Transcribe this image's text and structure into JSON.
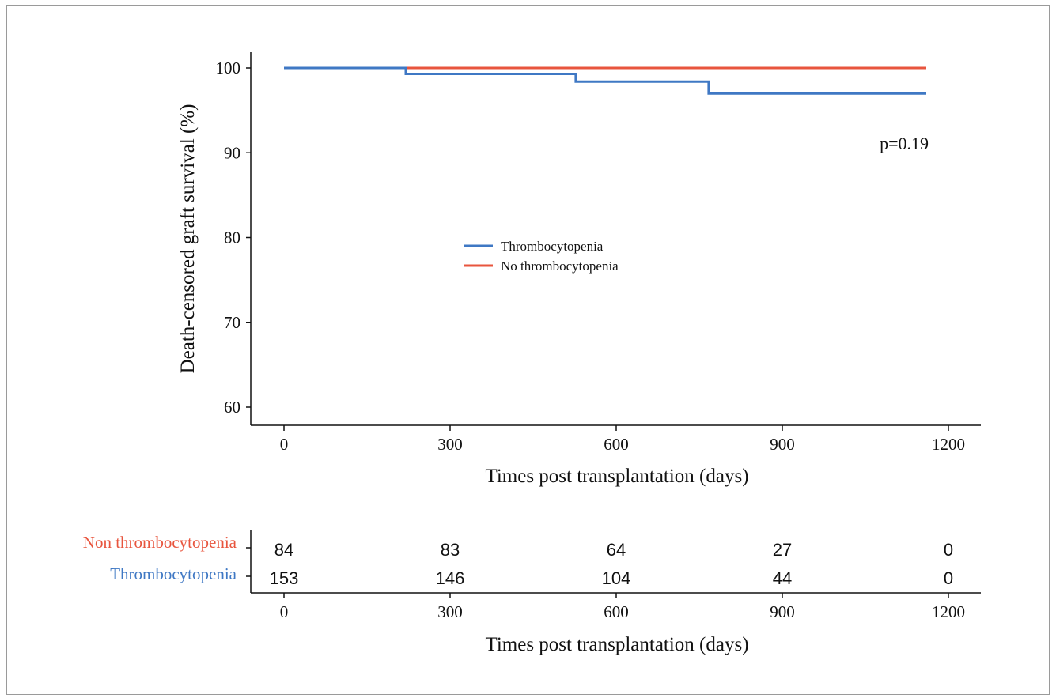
{
  "chart_data": [
    {
      "type": "line",
      "subtype": "kaplan-meier-step",
      "xlabel": "Times post transplantation (days)",
      "ylabel": "Death-censored graft survival (%)",
      "xlim": [
        -50,
        1250
      ],
      "ylim": [
        58,
        102
      ],
      "xticks": [
        0,
        300,
        600,
        900,
        1200
      ],
      "yticks": [
        60,
        70,
        80,
        90,
        100
      ],
      "legend_position": "center",
      "annotation": "p=0.19",
      "series": [
        {
          "name": "Thrombocytopenia",
          "color": "#3f78c4",
          "points": [
            [
              0,
              100
            ],
            [
              220,
              100
            ],
            [
              220,
              99.3
            ],
            [
              527,
              99.3
            ],
            [
              527,
              98.4
            ],
            [
              767,
              98.4
            ],
            [
              767,
              97.0
            ],
            [
              1160,
              97.0
            ]
          ]
        },
        {
          "name": "No thrombocytopenia",
          "color": "#e8553e",
          "points": [
            [
              0,
              100
            ],
            [
              1160,
              100
            ]
          ]
        }
      ]
    },
    {
      "type": "table",
      "subtype": "number-at-risk",
      "xlabel": "Times post transplantation (days)",
      "xticks": [
        0,
        300,
        600,
        900,
        1200
      ],
      "rows": [
        {
          "label": "Non thrombocytopenia",
          "color": "#e8553e",
          "values": [
            84,
            83,
            64,
            27,
            0
          ]
        },
        {
          "label": "Thrombocytopenia",
          "color": "#3f78c4",
          "values": [
            153,
            146,
            104,
            44,
            0
          ]
        }
      ]
    }
  ]
}
